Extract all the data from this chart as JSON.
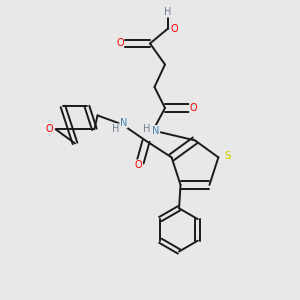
{
  "background_color": "#e8e8e8",
  "bond_color": "#1a1a1a",
  "colors": {
    "O": "#ff0000",
    "N": "#4682b4",
    "S": "#cccc00",
    "C": "#1a1a1a",
    "H": "#708090"
  }
}
